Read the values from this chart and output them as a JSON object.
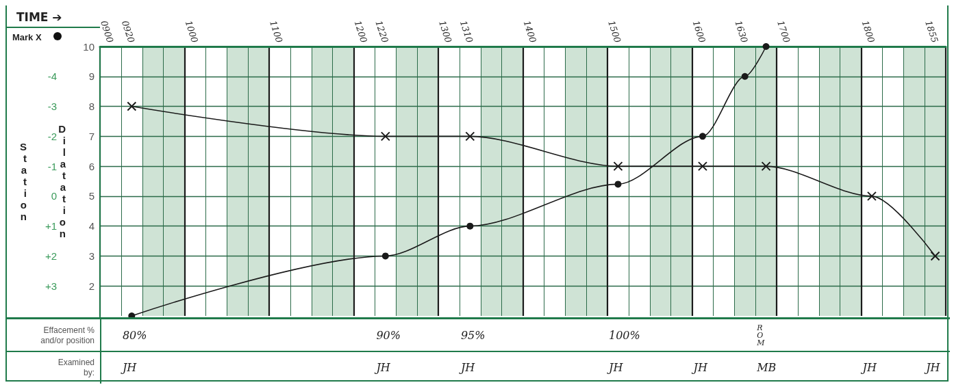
{
  "chart_data": [
    {
      "type": "line",
      "xlabel": "TIME ➔",
      "ylabel": "Dilatation",
      "y2label": "Station",
      "annotations": [
        "Mark X"
      ],
      "categories": [
        "0900",
        "0920",
        null,
        null,
        "1000",
        null,
        null,
        null,
        "1100",
        null,
        null,
        null,
        "1200",
        "1220",
        null,
        null,
        "1300",
        "1310",
        null,
        null,
        "1400",
        null,
        null,
        null,
        "1500",
        null,
        null,
        null,
        "1600",
        null,
        "1630",
        null,
        "1700",
        null,
        null,
        null,
        "1800",
        null,
        null,
        "1855"
      ],
      "ylim": [
        1,
        10
      ],
      "yticks": [
        2,
        3,
        4,
        5,
        6,
        7,
        8,
        9,
        10
      ],
      "y2lim": [
        4,
        -5
      ],
      "y2ticks": [
        -4,
        -3,
        -2,
        -1,
        0,
        {
          "value": 1,
          "label": "+1"
        },
        {
          "value": 2,
          "label": "+2"
        },
        {
          "value": 3,
          "label": "+3"
        }
      ],
      "series": [
        {
          "color": "#1a1a1a",
          "marker": "circle",
          "values": [
            null,
            1,
            null,
            null,
            null,
            null,
            null,
            null,
            null,
            null,
            null,
            null,
            null,
            3,
            null,
            null,
            null,
            4,
            null,
            null,
            null,
            null,
            null,
            null,
            5.4,
            null,
            null,
            null,
            7,
            null,
            9,
            10,
            null,
            null,
            null,
            null,
            null,
            null,
            null,
            null
          ]
        },
        {
          "color": "#1a1a1a",
          "marker": "cross",
          "axis": "y2",
          "values": [
            null,
            -3,
            null,
            null,
            null,
            null,
            null,
            null,
            null,
            null,
            null,
            null,
            null,
            -2,
            null,
            null,
            null,
            -2,
            null,
            null,
            null,
            null,
            null,
            null,
            -1,
            null,
            null,
            null,
            -1,
            null,
            null,
            -1,
            null,
            null,
            null,
            null,
            0,
            null,
            null,
            2
          ]
        }
      ],
      "grid": true
    },
    {
      "type": "other",
      "y_categories": [
        "Effacement %\nand/or position",
        "Examined\nby:"
      ],
      "cell_labels": [
        [
          null,
          "80%",
          null,
          null,
          null,
          null,
          null,
          null,
          null,
          null,
          null,
          null,
          null,
          "90%",
          null,
          null,
          null,
          "95%",
          null,
          null,
          null,
          null,
          null,
          null,
          "100%",
          null,
          null,
          null,
          null,
          null,
          null,
          "ROM",
          null,
          null,
          null,
          null,
          null,
          null,
          null,
          null
        ],
        [
          null,
          "JH",
          null,
          null,
          null,
          null,
          null,
          null,
          null,
          null,
          null,
          null,
          null,
          "JH",
          null,
          null,
          null,
          "JH",
          null,
          null,
          null,
          null,
          null,
          null,
          "JH",
          null,
          null,
          null,
          "JH",
          null,
          null,
          "MB",
          null,
          null,
          null,
          null,
          "JH",
          null,
          null,
          "JH"
        ]
      ]
    }
  ]
}
